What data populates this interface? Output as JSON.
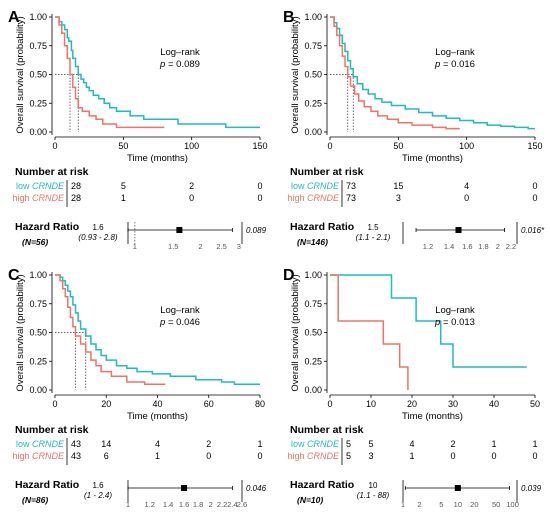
{
  "colors": {
    "low": "#1fbcbc",
    "high": "#ef7466",
    "axis": "#000000",
    "tick": "#555555"
  },
  "chart_data": [
    {
      "panel_label": "A",
      "type": "line",
      "ylabel": "Overall survival (probability)",
      "xlabel": "Time (months)",
      "xlim": [
        0,
        150
      ],
      "x_ticks": [
        0,
        50,
        100,
        150
      ],
      "ylim": [
        0,
        1
      ],
      "y_ticks": [
        "0.00",
        "0.25",
        "0.50",
        "0.75",
        "1.00"
      ],
      "test_label": "Log–rank",
      "p_text": "p = 0.089",
      "series": [
        {
          "name": "low CRNDE",
          "color": "low",
          "x": [
            0,
            3,
            5,
            7,
            9,
            10,
            12,
            13,
            15,
            17,
            19,
            21,
            23,
            25,
            28,
            32,
            36,
            40,
            45,
            55,
            65,
            80,
            90,
            100,
            110,
            125,
            140,
            150
          ],
          "y": [
            1,
            0.96,
            0.93,
            0.89,
            0.82,
            0.79,
            0.71,
            0.64,
            0.57,
            0.5,
            0.46,
            0.43,
            0.39,
            0.36,
            0.32,
            0.29,
            0.25,
            0.21,
            0.18,
            0.14,
            0.11,
            0.11,
            0.07,
            0.07,
            0.07,
            0.04,
            0.04,
            0.04
          ]
        },
        {
          "name": "high CRNDE",
          "color": "high",
          "x": [
            0,
            3,
            5,
            7,
            9,
            11,
            13,
            15,
            17,
            20,
            25,
            30,
            35,
            45,
            80
          ],
          "y": [
            1,
            0.93,
            0.86,
            0.75,
            0.64,
            0.5,
            0.39,
            0.29,
            0.21,
            0.18,
            0.14,
            0.11,
            0.07,
            0.04,
            0.04
          ]
        }
      ],
      "median_marker": "dotted vertical at each curve's median",
      "risk_table": {
        "title": "Number at risk",
        "rows": [
          {
            "label": "low",
            "gene": "CRNDE",
            "color": "low",
            "counts": [
              "28",
              "5",
              "2",
              "0"
            ]
          },
          {
            "label": "high",
            "gene": "CRNDE",
            "color": "high",
            "counts": [
              "28",
              "1",
              "0",
              "0"
            ]
          }
        ]
      },
      "hazard_ratio": {
        "label": "Hazard Ratio",
        "n_text": "(N=56)",
        "hr": "1.6",
        "ci_text": "(0.93 - 2.8)",
        "estimate": 1.6,
        "ci": [
          0.93,
          2.8
        ],
        "axis_min": 0.93,
        "axis_max": 3.1,
        "ticks": [
          "1",
          "1.5",
          "2",
          "2.5",
          "3"
        ],
        "p_text": "0.089",
        "scale": "log"
      }
    },
    {
      "panel_label": "B",
      "type": "line",
      "ylabel": "Overall survival (probability)",
      "xlabel": "Time (months)",
      "xlim": [
        0,
        150
      ],
      "x_ticks": [
        0,
        50,
        100,
        150
      ],
      "ylim": [
        0,
        1
      ],
      "y_ticks": [
        "0.00",
        "0.25",
        "0.50",
        "0.75",
        "1.00"
      ],
      "test_label": "Log–rank",
      "p_text": "p = 0.016",
      "series": [
        {
          "name": "low CRNDE",
          "color": "low",
          "x": [
            0,
            3,
            5,
            7,
            9,
            11,
            13,
            15,
            17,
            20,
            24,
            28,
            33,
            38,
            45,
            55,
            65,
            75,
            85,
            95,
            105,
            115,
            125,
            135,
            145,
            150
          ],
          "y": [
            1,
            0.95,
            0.9,
            0.84,
            0.77,
            0.7,
            0.62,
            0.55,
            0.48,
            0.42,
            0.37,
            0.33,
            0.29,
            0.26,
            0.23,
            0.2,
            0.17,
            0.14,
            0.12,
            0.1,
            0.08,
            0.06,
            0.05,
            0.04,
            0.03,
            0.03
          ]
        },
        {
          "name": "high CRNDE",
          "color": "high",
          "x": [
            0,
            3,
            5,
            7,
            9,
            11,
            13,
            15,
            18,
            21,
            25,
            30,
            35,
            42,
            50,
            60,
            75,
            85,
            95
          ],
          "y": [
            1,
            0.92,
            0.84,
            0.75,
            0.66,
            0.57,
            0.48,
            0.4,
            0.33,
            0.27,
            0.22,
            0.18,
            0.14,
            0.11,
            0.08,
            0.06,
            0.04,
            0.03,
            0.03
          ]
        }
      ],
      "median_marker": "dotted vertical at each curve's median",
      "risk_table": {
        "title": "Number at risk",
        "rows": [
          {
            "label": "low",
            "gene": "CRNDE",
            "color": "low",
            "counts": [
              "73",
              "15",
              "4",
              "0"
            ]
          },
          {
            "label": "high",
            "gene": "CRNDE",
            "color": "high",
            "counts": [
              "73",
              "3",
              "0",
              "0"
            ]
          }
        ]
      },
      "hazard_ratio": {
        "label": "Hazard Ratio",
        "n_text": "(N=146)",
        "hr": "1.5",
        "ci_text": "(1.1 - 2.1)",
        "estimate": 1.5,
        "ci": [
          1.1,
          2.1
        ],
        "axis_min": 1.0,
        "axis_max": 2.3,
        "ticks": [
          "1.2",
          "1.4",
          "1.6",
          "1.8",
          "2",
          "2.2"
        ],
        "p_text": "0.016*",
        "scale": "log"
      }
    },
    {
      "panel_label": "C",
      "type": "line",
      "ylabel": "Overall survival (probability)",
      "xlabel": "Time (months)",
      "xlim": [
        0,
        80
      ],
      "x_ticks": [
        0,
        20,
        40,
        60,
        80
      ],
      "ylim": [
        0,
        1
      ],
      "y_ticks": [
        "0.00",
        "0.25",
        "0.50",
        "0.75",
        "1.00"
      ],
      "test_label": "Log–rank",
      "p_text": "p = 0.046",
      "series": [
        {
          "name": "low CRNDE",
          "color": "low",
          "x": [
            0,
            2,
            3,
            4,
            5,
            6,
            7,
            8,
            9,
            10,
            12,
            14,
            16,
            18,
            20,
            24,
            28,
            32,
            38,
            45,
            55,
            65,
            70,
            80
          ],
          "y": [
            1,
            0.98,
            0.95,
            0.91,
            0.86,
            0.81,
            0.74,
            0.67,
            0.6,
            0.53,
            0.47,
            0.4,
            0.35,
            0.3,
            0.26,
            0.21,
            0.19,
            0.16,
            0.14,
            0.12,
            0.09,
            0.07,
            0.05,
            0.05
          ]
        },
        {
          "name": "high CRNDE",
          "color": "high",
          "x": [
            0,
            2,
            3,
            4,
            5,
            6,
            7,
            8,
            10,
            12,
            14,
            16,
            18,
            22,
            28,
            35,
            43
          ],
          "y": [
            1,
            0.95,
            0.88,
            0.81,
            0.72,
            0.63,
            0.55,
            0.47,
            0.4,
            0.33,
            0.26,
            0.21,
            0.16,
            0.12,
            0.07,
            0.05,
            0.05
          ]
        }
      ],
      "median_marker": "dotted vertical at each curve's median",
      "risk_table": {
        "title": "Number at risk",
        "rows": [
          {
            "label": "low",
            "gene": "CRNDE",
            "color": "low",
            "counts": [
              "43",
              "14",
              "4",
              "2",
              "1"
            ]
          },
          {
            "label": "high",
            "gene": "CRNDE",
            "color": "high",
            "counts": [
              "43",
              "6",
              "1",
              "0",
              "0"
            ]
          }
        ]
      },
      "hazard_ratio": {
        "label": "Hazard Ratio",
        "n_text": "(N=86)",
        "hr": "1.6",
        "ci_text": "(1 - 2.4)",
        "estimate": 1.6,
        "ci": [
          1.0,
          2.4
        ],
        "axis_min": 1.0,
        "axis_max": 2.6,
        "ticks": [
          "1",
          "1.2",
          "1.4",
          "1.6",
          "1.8",
          "2",
          "2.2",
          "2.4",
          "2.6"
        ],
        "p_text": "0.046",
        "scale": "log"
      }
    },
    {
      "panel_label": "D",
      "type": "line",
      "ylabel": "Overall survival (probability)",
      "xlabel": "Time (months)",
      "xlim": [
        0,
        50
      ],
      "x_ticks": [
        0,
        10,
        20,
        30,
        40,
        50
      ],
      "ylim": [
        0,
        1
      ],
      "y_ticks": [
        "0.00",
        "0.25",
        "0.50",
        "0.75",
        "1.00"
      ],
      "test_label": "Log–rank",
      "p_text": "p = 0.013",
      "series": [
        {
          "name": "low CRNDE",
          "color": "low",
          "x": [
            0,
            15,
            21,
            27,
            30,
            48
          ],
          "y": [
            1,
            0.8,
            0.6,
            0.4,
            0.2,
            0.2
          ]
        },
        {
          "name": "high CRNDE",
          "color": "high",
          "x": [
            0,
            2,
            13,
            17,
            19
          ],
          "y": [
            1,
            0.6,
            0.4,
            0.2,
            0
          ]
        }
      ],
      "median_marker": "none",
      "risk_table": {
        "title": "Number at risk",
        "rows": [
          {
            "label": "low",
            "gene": "CRNDE",
            "color": "low",
            "counts": [
              "5",
              "5",
              "4",
              "2",
              "1",
              "1"
            ]
          },
          {
            "label": "high",
            "gene": "CRNDE",
            "color": "high",
            "counts": [
              "5",
              "3",
              "1",
              "0",
              "0",
              "0"
            ]
          }
        ]
      },
      "hazard_ratio": {
        "label": "Hazard Ratio",
        "n_text": "(N=10)",
        "hr": "10",
        "ci_text": "(1.1 - 88)",
        "estimate": 10,
        "ci": [
          1.1,
          88
        ],
        "axis_min": 1,
        "axis_max": 120,
        "ticks": [
          "1",
          "2",
          "5",
          "10",
          "20",
          "50",
          "100"
        ],
        "p_text": "0.039",
        "scale": "log"
      }
    }
  ]
}
